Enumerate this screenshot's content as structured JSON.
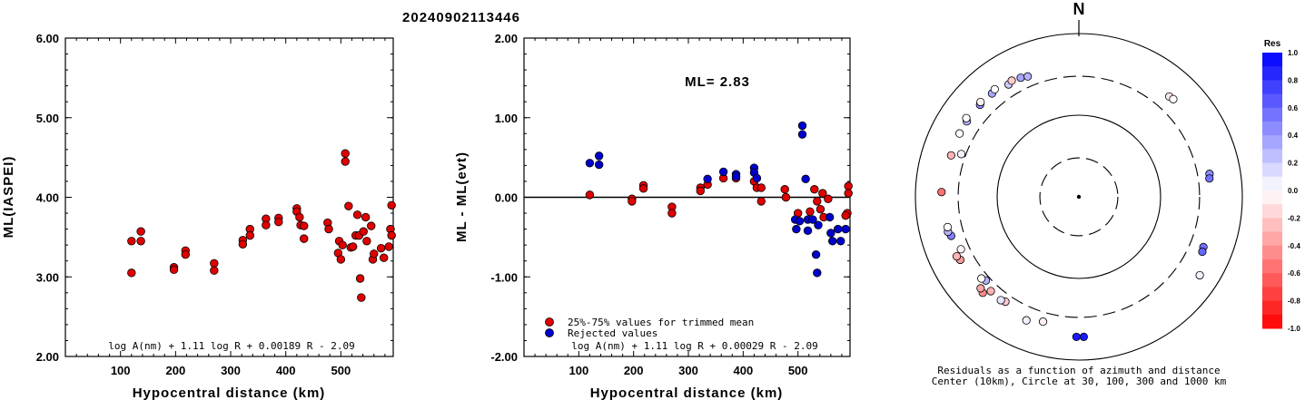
{
  "event_id": "20240902113446",
  "chart_data": [
    {
      "type": "scatter",
      "ylabel": "ML(IASPEI)",
      "xlabel": "Hypocentral distance (km)",
      "xlim": [
        0,
        595
      ],
      "ylim": [
        2.0,
        6.0
      ],
      "x_ticks": [
        "100",
        "200",
        "300",
        "400",
        "500"
      ],
      "y_ticks": [
        "2.00",
        "3.00",
        "4.00",
        "5.00",
        "6.00"
      ],
      "formula": "log A(nm) + 1.11 log R + 0.00189 R - 2.09",
      "series": [
        {
          "color": "#e00000",
          "points": [
            [
              120,
              3.45
            ],
            [
              120,
              3.05
            ],
            [
              137,
              3.57
            ],
            [
              137,
              3.45
            ],
            [
              197,
              3.12
            ],
            [
              197,
              3.09
            ],
            [
              218,
              3.33
            ],
            [
              218,
              3.28
            ],
            [
              270,
              3.17
            ],
            [
              270,
              3.08
            ],
            [
              322,
              3.46
            ],
            [
              322,
              3.41
            ],
            [
              335,
              3.6
            ],
            [
              335,
              3.52
            ],
            [
              364,
              3.73
            ],
            [
              364,
              3.65
            ],
            [
              387,
              3.74
            ],
            [
              387,
              3.69
            ],
            [
              420,
              3.86
            ],
            [
              420,
              3.82
            ],
            [
              425,
              3.75
            ],
            [
              427,
              3.65
            ],
            [
              433,
              3.64
            ],
            [
              433,
              3.48
            ],
            [
              476,
              3.68
            ],
            [
              478,
              3.6
            ],
            [
              495,
              3.3
            ],
            [
              497,
              3.45
            ],
            [
              500,
              3.22
            ],
            [
              503,
              3.4
            ],
            [
              508,
              4.55
            ],
            [
              508,
              4.45
            ],
            [
              514,
              3.89
            ],
            [
              518,
              3.37
            ],
            [
              522,
              3.38
            ],
            [
              527,
              3.52
            ],
            [
              530,
              3.78
            ],
            [
              533,
              3.52
            ],
            [
              535,
              2.98
            ],
            [
              537,
              2.74
            ],
            [
              541,
              3.57
            ],
            [
              545,
              3.75
            ],
            [
              547,
              3.45
            ],
            [
              555,
              3.64
            ],
            [
              558,
              3.22
            ],
            [
              560,
              3.29
            ],
            [
              573,
              3.36
            ],
            [
              578,
              3.24
            ],
            [
              587,
              3.38
            ],
            [
              590,
              3.6
            ],
            [
              592,
              3.9
            ],
            [
              592,
              3.52
            ]
          ]
        }
      ]
    },
    {
      "type": "scatter",
      "ylabel": "ML - ML(evt)",
      "xlabel": "Hypocentral distance (km)",
      "xlim": [
        0,
        595
      ],
      "ylim": [
        -2.0,
        2.0
      ],
      "x_ticks": [
        "100",
        "200",
        "300",
        "400",
        "500"
      ],
      "y_ticks": [
        "-2.00",
        "-1.00",
        "0.00",
        "1.00",
        "2.00"
      ],
      "annotation": "ML= 2.83",
      "formula": "log A(nm) + 1.11 log R + 0.00029 R - 2.09",
      "legend": [
        {
          "label": "25%-75% values for trimmed mean",
          "color": "#e00000"
        },
        {
          "label": "Rejected values",
          "color": "#0000cc"
        }
      ],
      "series": [
        {
          "name": "25%-75% values for trimmed mean",
          "color": "#e00000",
          "points": [
            [
              120,
              0.03
            ],
            [
              197,
              -0.02
            ],
            [
              197,
              -0.05
            ],
            [
              218,
              0.15
            ],
            [
              218,
              0.11
            ],
            [
              270,
              -0.12
            ],
            [
              270,
              -0.2
            ],
            [
              322,
              0.12
            ],
            [
              322,
              0.08
            ],
            [
              335,
              0.16
            ],
            [
              364,
              0.24
            ],
            [
              387,
              0.24
            ],
            [
              420,
              0.2
            ],
            [
              425,
              0.12
            ],
            [
              433,
              0.12
            ],
            [
              433,
              -0.05
            ],
            [
              476,
              0.1
            ],
            [
              478,
              0.0
            ],
            [
              500,
              -0.2
            ],
            [
              522,
              -0.18
            ],
            [
              530,
              0.1
            ],
            [
              535,
              -0.05
            ],
            [
              541,
              -0.15
            ],
            [
              545,
              0.05
            ],
            [
              547,
              -0.25
            ],
            [
              555,
              -0.02
            ],
            [
              592,
              0.14
            ],
            [
              592,
              0.05
            ],
            [
              590,
              -0.2
            ],
            [
              587,
              -0.23
            ]
          ]
        },
        {
          "name": "Rejected values",
          "color": "#0000cc",
          "points": [
            [
              120,
              0.43
            ],
            [
              137,
              0.52
            ],
            [
              137,
              0.41
            ],
            [
              335,
              0.23
            ],
            [
              364,
              0.32
            ],
            [
              387,
              0.29
            ],
            [
              387,
              0.26
            ],
            [
              420,
              0.37
            ],
            [
              420,
              0.31
            ],
            [
              425,
              0.24
            ],
            [
              495,
              -0.28
            ],
            [
              497,
              -0.4
            ],
            [
              503,
              -0.3
            ],
            [
              508,
              0.9
            ],
            [
              508,
              0.79
            ],
            [
              514,
              0.23
            ],
            [
              518,
              -0.42
            ],
            [
              518,
              -0.28
            ],
            [
              527,
              -0.28
            ],
            [
              533,
              -0.72
            ],
            [
              535,
              -0.95
            ],
            [
              537,
              -0.35
            ],
            [
              558,
              -0.25
            ],
            [
              560,
              -0.45
            ],
            [
              563,
              -0.55
            ],
            [
              573,
              -0.4
            ],
            [
              578,
              -0.55
            ],
            [
              587,
              -0.4
            ]
          ]
        }
      ]
    },
    {
      "type": "scatter",
      "subtype": "polar-residuals",
      "north_label": "N",
      "caption_line1": "Residuals as a function of azimuth and distance",
      "caption_line2": "Center (10km), Circle at 30, 100, 300 and 1000 km",
      "colorbar_title": "Res",
      "colorbar_ticks": [
        "1.0",
        "0.8",
        "0.6",
        "0.4",
        "0.2",
        "0.0",
        "-0.2",
        "-0.4",
        "-0.6",
        "-0.8",
        "-1.0"
      ],
      "circles_km": [
        30,
        100,
        300,
        1000
      ],
      "circle_styles": [
        "dashed",
        "solid",
        "dashed",
        "solid"
      ],
      "stations": [
        {
          "azimuth_deg": 42,
          "distance_km": 450,
          "residual": -0.1
        },
        {
          "azimuth_deg": 44,
          "distance_km": 460,
          "residual": 0.0
        },
        {
          "azimuth_deg": 80,
          "distance_km": 420,
          "residual": 0.45
        },
        {
          "azimuth_deg": 82,
          "distance_km": 410,
          "residual": 0.55
        },
        {
          "azimuth_deg": 112,
          "distance_km": 440,
          "residual": 0.55
        },
        {
          "azimuth_deg": 114,
          "distance_km": 450,
          "residual": 0.6
        },
        {
          "azimuth_deg": 123,
          "distance_km": 580,
          "residual": 0.05
        },
        {
          "azimuth_deg": 178,
          "distance_km": 520,
          "residual": 0.9
        },
        {
          "azimuth_deg": 181,
          "distance_km": 520,
          "residual": 0.9
        },
        {
          "azimuth_deg": 196,
          "distance_km": 390,
          "residual": -0.05
        },
        {
          "azimuth_deg": 203,
          "distance_km": 440,
          "residual": 0.05
        },
        {
          "azimuth_deg": 215,
          "distance_km": 370,
          "residual": -0.2
        },
        {
          "azimuth_deg": 217,
          "distance_km": 385,
          "residual": 0.1
        },
        {
          "azimuth_deg": 223,
          "distance_km": 380,
          "residual": -0.3
        },
        {
          "azimuth_deg": 225,
          "distance_km": 460,
          "residual": -0.45
        },
        {
          "azimuth_deg": 227,
          "distance_km": 440,
          "residual": -0.35
        },
        {
          "azimuth_deg": 228,
          "distance_km": 340,
          "residual": 0.3
        },
        {
          "azimuth_deg": 230,
          "distance_km": 360,
          "residual": 0.0
        },
        {
          "azimuth_deg": 242,
          "distance_km": 440,
          "residual": -0.4
        },
        {
          "azimuth_deg": 244,
          "distance_km": 460,
          "residual": -0.3
        },
        {
          "azimuth_deg": 246,
          "distance_km": 380,
          "residual": -0.05
        },
        {
          "azimuth_deg": 253,
          "distance_km": 430,
          "residual": 0.5
        },
        {
          "azimuth_deg": 255,
          "distance_km": 455,
          "residual": 0.3
        },
        {
          "azimuth_deg": 257,
          "distance_km": 445,
          "residual": 0.0
        },
        {
          "azimuth_deg": 272,
          "distance_km": 480,
          "residual": -0.55
        },
        {
          "azimuth_deg": 288,
          "distance_km": 440,
          "residual": -0.3
        },
        {
          "azimuth_deg": 290,
          "distance_km": 340,
          "residual": 0.05
        },
        {
          "azimuth_deg": 298,
          "distance_km": 450,
          "residual": 0.0
        },
        {
          "azimuth_deg": 304,
          "distance_km": 450,
          "residual": 0.3
        },
        {
          "azimuth_deg": 305,
          "distance_km": 480,
          "residual": 0.0
        },
        {
          "azimuth_deg": 313,
          "distance_km": 450,
          "residual": 0.45
        },
        {
          "azimuth_deg": 314,
          "distance_km": 470,
          "residual": -0.05
        },
        {
          "azimuth_deg": 320,
          "distance_km": 450,
          "residual": 0.35
        },
        {
          "azimuth_deg": 322,
          "distance_km": 470,
          "residual": 0.0
        },
        {
          "azimuth_deg": 328,
          "distance_km": 420,
          "residual": 0.2
        },
        {
          "azimuth_deg": 330,
          "distance_km": 440,
          "residual": -0.2
        },
        {
          "azimuth_deg": 334,
          "distance_km": 420,
          "residual": 0.35
        },
        {
          "azimuth_deg": 337,
          "distance_km": 400,
          "residual": 0.3
        }
      ]
    }
  ]
}
